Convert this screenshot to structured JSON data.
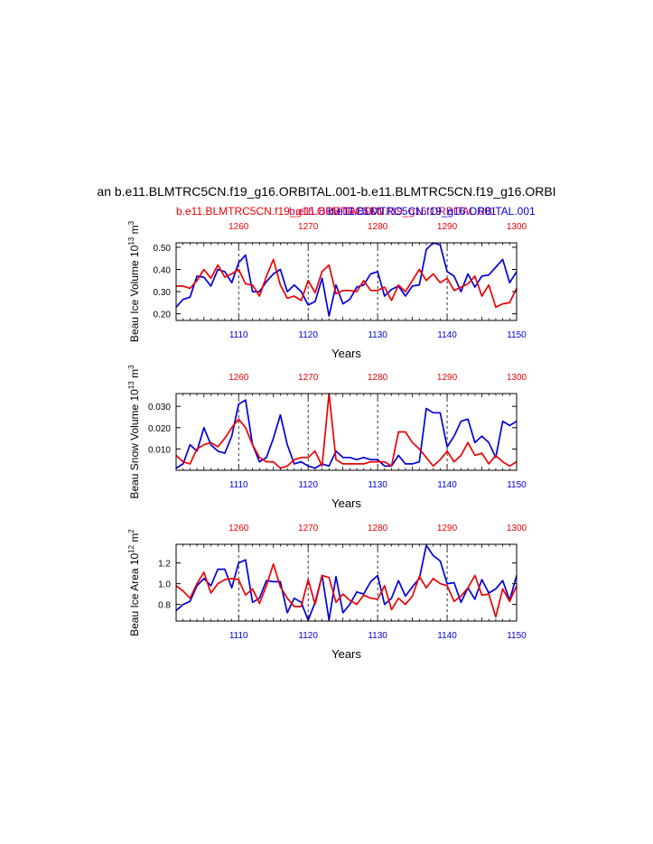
{
  "figure": {
    "title": "an b.e11.BLMTRC5CN.f19_g16.ORBITAL.001-b.e11.BLMTRC5CN.f19_g16.ORBI",
    "legend_red": "b.e11.BLMTRC5CN.f19_g16.ORBITAL.001",
    "legend_blue": "b.e11.BLMTRC5CN.f19_g16.ORBITAL.001",
    "legend_mid": "b.e11.BLMTRC5CN.f19_g16.ORBITAL.001",
    "colors": {
      "red": "#ee0000",
      "blue": "#0000dd",
      "axis": "#000000",
      "grid": "#000000"
    }
  },
  "chart_data": [
    {
      "type": "line",
      "id": "ice-volume",
      "ylabel": "Beau Ice Volume 10^13 m^3",
      "ylabel_base": "Beau Ice Volume 10",
      "ylabel_exp": "13",
      "ylabel_unit": "m",
      "ylabel_unit_exp": "3",
      "xlabel": "Years",
      "bottom_xlim": [
        1101,
        1150
      ],
      "bottom_ticks": [
        1110,
        1120,
        1130,
        1140,
        1150
      ],
      "top_ticks": [
        1260,
        1270,
        1280,
        1290,
        1300
      ],
      "ylim": [
        0.17,
        0.52
      ],
      "yticks": [
        "0.20",
        "0.30",
        "0.40",
        "0.50"
      ],
      "ytick_values": [
        0.2,
        0.3,
        0.4,
        0.5
      ],
      "series": [
        {
          "name": "b.e11.BLMTRC5CN.f19_g16.ORBITAL.001",
          "color": "blue",
          "values": [
            0.23,
            0.265,
            0.275,
            0.37,
            0.365,
            0.325,
            0.4,
            0.39,
            0.34,
            0.43,
            0.465,
            0.3,
            0.3,
            0.345,
            0.38,
            0.4,
            0.3,
            0.33,
            0.3,
            0.24,
            0.255,
            0.36,
            0.19,
            0.33,
            0.245,
            0.265,
            0.32,
            0.33,
            0.38,
            0.39,
            0.28,
            0.31,
            0.325,
            0.28,
            0.325,
            0.33,
            0.49,
            0.52,
            0.51,
            0.39,
            0.37,
            0.3,
            0.38,
            0.32,
            0.37,
            0.375,
            0.41,
            0.445,
            0.34,
            0.39
          ]
        },
        {
          "name": "b.e11.BLMTRC5CN.f19_g16.ORBITAL.001",
          "color": "red",
          "values": [
            0.325,
            0.325,
            0.315,
            0.35,
            0.4,
            0.36,
            0.42,
            0.365,
            0.38,
            0.4,
            0.335,
            0.33,
            0.28,
            0.37,
            0.445,
            0.33,
            0.27,
            0.28,
            0.26,
            0.35,
            0.295,
            0.39,
            0.42,
            0.29,
            0.305,
            0.305,
            0.3,
            0.35,
            0.305,
            0.305,
            0.32,
            0.26,
            0.33,
            0.3,
            0.35,
            0.4,
            0.35,
            0.38,
            0.34,
            0.36,
            0.305,
            0.32,
            0.335,
            0.37,
            0.28,
            0.33,
            0.23,
            0.245,
            0.25,
            0.315
          ]
        }
      ]
    },
    {
      "type": "line",
      "id": "snow-volume",
      "ylabel": "Beau Snow Volume 10^13 m^3",
      "ylabel_base": "Beau Snow Volume 10",
      "ylabel_exp": "13",
      "ylabel_unit": "m",
      "ylabel_unit_exp": "3",
      "xlabel": "Years",
      "bottom_xlim": [
        1101,
        1150
      ],
      "bottom_ticks": [
        1110,
        1120,
        1130,
        1140,
        1150
      ],
      "top_ticks": [
        1260,
        1270,
        1280,
        1290,
        1300
      ],
      "ylim": [
        0.0,
        0.036
      ],
      "yticks": [
        "0.010",
        "0.020",
        "0.030"
      ],
      "ytick_values": [
        0.01,
        0.02,
        0.03
      ],
      "series": [
        {
          "name": "b.e11.BLMTRC5CN.f19_g16.ORBITAL.001",
          "color": "blue",
          "values": [
            0.001,
            0.003,
            0.012,
            0.009,
            0.02,
            0.012,
            0.009,
            0.008,
            0.016,
            0.031,
            0.033,
            0.012,
            0.004,
            0.006,
            0.015,
            0.026,
            0.012,
            0.003,
            0.004,
            0.002,
            0.001,
            0.003,
            0.002,
            0.009,
            0.006,
            0.006,
            0.005,
            0.006,
            0.005,
            0.005,
            0.002,
            0.002,
            0.007,
            0.003,
            0.003,
            0.004,
            0.029,
            0.027,
            0.027,
            0.011,
            0.016,
            0.023,
            0.024,
            0.013,
            0.016,
            0.013,
            0.006,
            0.023,
            0.021,
            0.023
          ]
        },
        {
          "name": "b.e11.BLMTRC5CN.f19_g16.ORBITAL.001",
          "color": "red",
          "values": [
            0.007,
            0.004,
            0.003,
            0.01,
            0.012,
            0.013,
            0.011,
            0.015,
            0.02,
            0.024,
            0.02,
            0.012,
            0.006,
            0.004,
            0.004,
            0.001,
            0.002,
            0.005,
            0.006,
            0.006,
            0.009,
            0.002,
            0.036,
            0.005,
            0.003,
            0.003,
            0.003,
            0.003,
            0.004,
            0.004,
            0.004,
            0.002,
            0.018,
            0.018,
            0.013,
            0.01,
            0.006,
            0.002,
            0.005,
            0.009,
            0.004,
            0.007,
            0.013,
            0.007,
            0.008,
            0.003,
            0.007,
            0.004,
            0.002,
            0.004
          ]
        }
      ]
    },
    {
      "type": "line",
      "id": "ice-area",
      "ylabel": "Beau Ice Area 10^12 m^2",
      "ylabel_base": "Beau Ice Area 10",
      "ylabel_exp": "12",
      "ylabel_unit": "m",
      "ylabel_unit_exp": "2",
      "xlabel": "Years",
      "bottom_xlim": [
        1101,
        1150
      ],
      "bottom_ticks": [
        1110,
        1120,
        1130,
        1140,
        1150
      ],
      "top_ticks": [
        1260,
        1270,
        1280,
        1290,
        1300
      ],
      "ylim": [
        0.64,
        1.38
      ],
      "yticks": [
        "0.8",
        "1.0",
        "1.2"
      ],
      "ytick_values": [
        0.8,
        1.0,
        1.2
      ],
      "series": [
        {
          "name": "b.e11.BLMTRC5CN.f19_g16.ORBITAL.001",
          "color": "blue",
          "values": [
            0.74,
            0.8,
            0.83,
            0.98,
            1.05,
            0.98,
            1.14,
            1.14,
            0.96,
            1.2,
            1.23,
            0.82,
            0.86,
            1.03,
            1.02,
            1.02,
            0.72,
            0.86,
            0.82,
            0.65,
            0.82,
            1.08,
            0.65,
            1.07,
            0.72,
            0.8,
            0.92,
            0.9,
            1.02,
            1.08,
            0.8,
            0.86,
            1.03,
            0.88,
            0.97,
            1.05,
            1.37,
            1.27,
            1.22,
            1.0,
            1.01,
            0.82,
            0.96,
            0.85,
            1.04,
            0.91,
            0.95,
            1.03,
            0.84,
            1.08
          ]
        },
        {
          "name": "b.e11.BLMTRC5CN.f19_g16.ORBITAL.001",
          "color": "red",
          "values": [
            0.98,
            0.93,
            0.86,
            1.0,
            1.11,
            0.91,
            1.0,
            1.04,
            1.05,
            1.04,
            0.89,
            0.95,
            0.81,
            0.98,
            1.19,
            0.97,
            0.86,
            0.78,
            0.78,
            1.04,
            0.8,
            1.08,
            1.06,
            0.82,
            0.9,
            0.84,
            0.8,
            0.89,
            0.86,
            0.85,
            0.98,
            0.75,
            0.86,
            0.8,
            0.88,
            1.07,
            0.96,
            1.05,
            1.0,
            0.98,
            0.83,
            0.88,
            0.96,
            1.08,
            0.89,
            0.9,
            0.68,
            0.95,
            0.83,
            0.98
          ]
        }
      ]
    }
  ]
}
